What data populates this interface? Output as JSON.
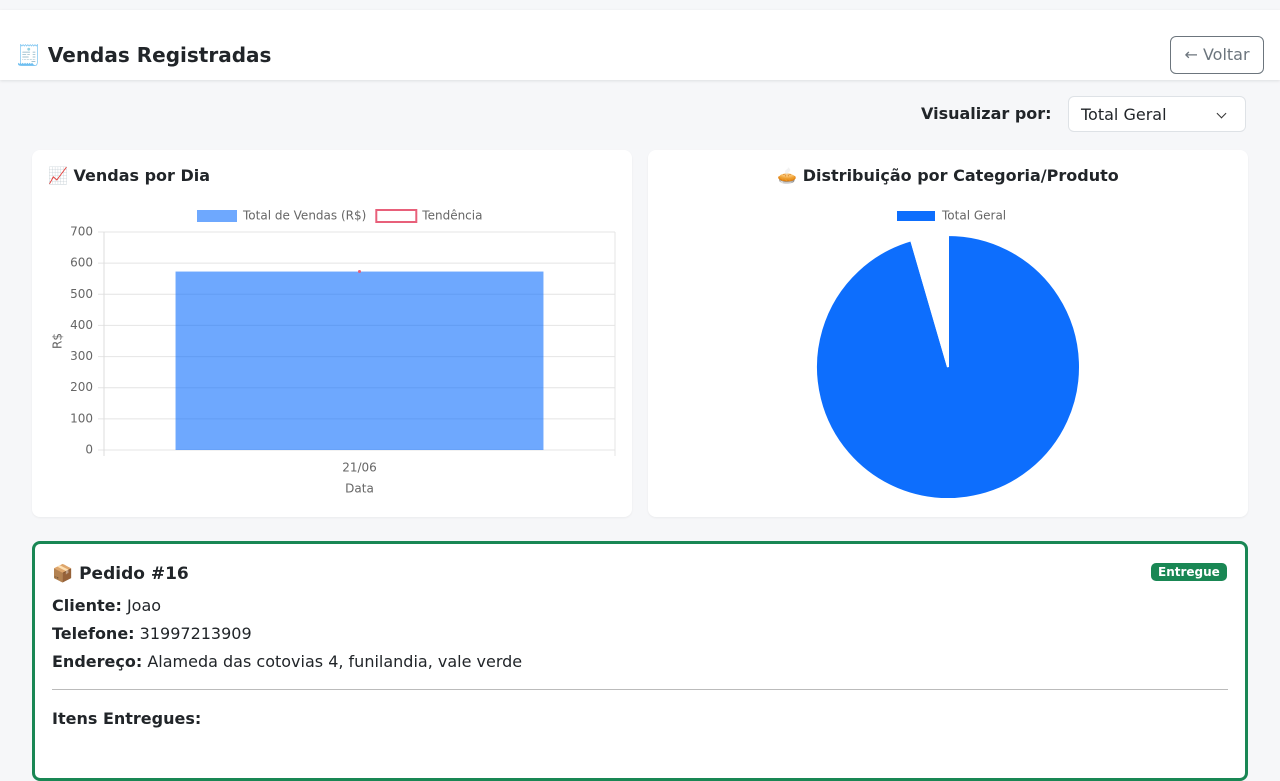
{
  "header": {
    "title": "🧾 Vendas Registradas",
    "back": "← Voltar"
  },
  "filter": {
    "label": "Visualizar por:",
    "selected": "Total Geral"
  },
  "chart_data": [
    {
      "type": "bar",
      "title": "📈 Vendas por Dia",
      "categories": [
        "21/06"
      ],
      "series": [
        {
          "name": "Total de Vendas (R$)",
          "color": "rgba(13,110,253,0.6)",
          "values": [
            573
          ]
        },
        {
          "name": "Tendência",
          "color": "#e8607a",
          "type": "line",
          "values": [
            573
          ]
        }
      ],
      "xlabel": "Data",
      "ylabel": "R$",
      "ylim": [
        0,
        700
      ],
      "yticks": [
        0,
        100,
        200,
        300,
        400,
        500,
        600,
        700
      ],
      "grid": true
    },
    {
      "type": "pie",
      "title": "🥧 Distribuição por Categoria/Produto",
      "categories": [
        "Total Geral",
        null
      ],
      "values": [
        95.5,
        4.5
      ],
      "colors": [
        "#0d6efd",
        "#ffffff"
      ]
    }
  ],
  "order": {
    "title": "📦 Pedido #16",
    "status": "Entregue",
    "fields": [
      {
        "label": "Cliente:",
        "value": "Joao"
      },
      {
        "label": "Telefone:",
        "value": "31997213909"
      },
      {
        "label": "Endereço:",
        "value": "Alameda das cotovias 4, funilandia, vale verde"
      }
    ],
    "items_title": "Itens Entregues:"
  }
}
